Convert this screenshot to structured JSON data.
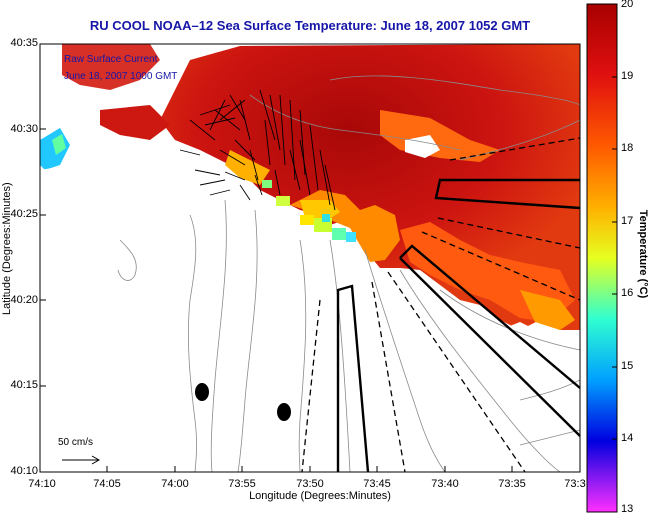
{
  "title": "RU COOL   NOAA–12  Sea Surface Temperature:  June 18, 2007 1052 GMT",
  "overlay_lines": [
    "Raw Surface Current",
    "June 18, 2007 1000 GMT"
  ],
  "scale_label": "50 cm/s",
  "axes": {
    "xlabel": "Longitude (Degrees:Minutes)",
    "ylabel": "Latitude (Degrees:Minutes)",
    "x_ticks": [
      "74:10",
      "74:05",
      "74:00",
      "73:55",
      "73:50",
      "73:45",
      "73:40",
      "73:35",
      "73:3"
    ],
    "y_ticks": [
      "40:35",
      "40:30",
      "40:25",
      "40:20",
      "40:15",
      "40:10"
    ]
  },
  "colorbar": {
    "label": "Temperature (°C)",
    "ticks": [
      "20",
      "19",
      "18",
      "17",
      "16",
      "15",
      "14",
      "13"
    ],
    "range": [
      13,
      20
    ],
    "colors": [
      "#a80000",
      "#e01010",
      "#ff5a00",
      "#ffb000",
      "#e6ff20",
      "#30ffd0",
      "#00a0ff",
      "#0000e0",
      "#ff30ff"
    ]
  },
  "colors": {
    "land": "#ffffff",
    "warm": "#d21a10",
    "cool": "#f0e020",
    "track": "#000000"
  }
}
